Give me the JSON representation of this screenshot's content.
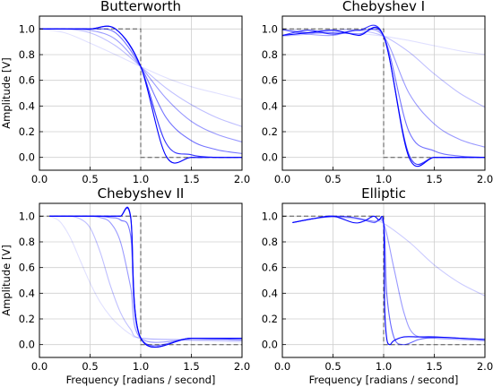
{
  "figure": {
    "xlabel": "Frequency [radians / second]",
    "ylabel": "Amplitude [V]"
  },
  "chart_data": [
    {
      "type": "line",
      "title": "Butterworth",
      "xlim": [
        0,
        2
      ],
      "ylim": [
        -0.1,
        1.1
      ],
      "xticks": [
        "0.0",
        "0.5",
        "1.0",
        "1.5",
        "2.0"
      ],
      "yticks": [
        "0.0",
        "0.2",
        "0.4",
        "0.6",
        "0.8",
        "1.0"
      ],
      "grid": true,
      "ideal": {
        "style": "dashed",
        "x": [
          0,
          1,
          1,
          2
        ],
        "y": [
          1,
          1,
          0,
          0
        ]
      },
      "series": [
        {
          "order": 1,
          "alpha": 0.12,
          "x": [
            0,
            0.25,
            0.5,
            0.75,
            1.0,
            1.25,
            1.5,
            1.75,
            2.0
          ],
          "y": [
            1.0,
            0.97,
            0.89,
            0.8,
            0.707,
            0.62,
            0.55,
            0.5,
            0.45
          ]
        },
        {
          "order": 2,
          "alpha": 0.25,
          "x": [
            0,
            0.25,
            0.5,
            0.75,
            1.0,
            1.25,
            1.5,
            1.75,
            2.0
          ],
          "y": [
            1.0,
            1.0,
            0.97,
            0.87,
            0.707,
            0.54,
            0.41,
            0.31,
            0.24
          ]
        },
        {
          "order": 3,
          "alpha": 0.4,
          "x": [
            0,
            0.25,
            0.5,
            0.75,
            1.0,
            1.25,
            1.5,
            1.75,
            2.0
          ],
          "y": [
            1.0,
            1.0,
            0.99,
            0.92,
            0.707,
            0.46,
            0.28,
            0.18,
            0.12
          ]
        },
        {
          "order": 5,
          "alpha": 0.55,
          "x": [
            0,
            0.25,
            0.5,
            0.75,
            1.0,
            1.25,
            1.5,
            1.75,
            2.0
          ],
          "y": [
            1.0,
            1.0,
            1.0,
            0.97,
            0.707,
            0.31,
            0.13,
            0.06,
            0.03
          ]
        },
        {
          "order": 10,
          "alpha": 0.8,
          "x": [
            0,
            0.25,
            0.5,
            0.75,
            1.0,
            1.25,
            1.5,
            1.75,
            2.0
          ],
          "y": [
            1.0,
            1.0,
            1.0,
            1.0,
            0.707,
            0.11,
            0.02,
            0.0,
            0.0
          ]
        },
        {
          "order": 20,
          "alpha": 1.0,
          "x": [
            0,
            0.25,
            0.5,
            0.75,
            1.0,
            1.25,
            1.5,
            1.75,
            2.0
          ],
          "y": [
            1.0,
            1.0,
            1.0,
            1.0,
            0.707,
            0.01,
            0.0,
            0.0,
            0.0
          ]
        }
      ]
    },
    {
      "type": "line",
      "title": "Chebyshev I",
      "xlim": [
        0,
        2
      ],
      "ylim": [
        -0.1,
        1.1
      ],
      "xticks": [
        "0.0",
        "0.5",
        "1.0",
        "1.5",
        "2.0"
      ],
      "yticks": [
        "0.0",
        "0.2",
        "0.4",
        "0.6",
        "0.8",
        "1.0"
      ],
      "grid": true,
      "ideal": {
        "style": "dashed",
        "x": [
          0,
          1,
          1,
          2
        ],
        "y": [
          1,
          1,
          0,
          0
        ]
      },
      "ripple": 0.944,
      "series": [
        {
          "order": 1,
          "alpha": 0.12,
          "x": [
            0,
            0.25,
            0.5,
            0.75,
            1.0,
            1.25,
            1.5,
            1.75,
            2.0
          ],
          "y": [
            0.994,
            0.99,
            0.98,
            0.965,
            0.944,
            0.91,
            0.87,
            0.83,
            0.8
          ]
        },
        {
          "order": 2,
          "alpha": 0.25,
          "x": [
            0,
            0.25,
            0.5,
            0.75,
            1.0,
            1.25,
            1.5,
            1.75,
            2.0
          ],
          "y": [
            0.944,
            0.96,
            0.99,
            0.99,
            0.944,
            0.82,
            0.65,
            0.5,
            0.39
          ]
        },
        {
          "order": 3,
          "alpha": 0.4,
          "x": [
            0,
            0.25,
            0.5,
            0.75,
            1.0,
            1.25,
            1.5,
            1.75,
            2.0
          ],
          "y": [
            0.994,
            0.96,
            0.95,
            0.99,
            0.944,
            0.5,
            0.26,
            0.14,
            0.08
          ]
        },
        {
          "order": 5,
          "alpha": 0.55,
          "x": [
            0,
            0.25,
            0.5,
            0.75,
            1.0,
            1.25,
            1.5,
            1.75,
            2.0
          ],
          "y": [
            0.994,
            0.97,
            0.97,
            0.96,
            0.944,
            0.2,
            0.05,
            0.01,
            0.0
          ]
        },
        {
          "order": 10,
          "alpha": 0.8,
          "x": [
            0,
            0.25,
            0.5,
            0.75,
            1.0,
            1.25,
            1.5,
            1.75,
            2.0
          ],
          "y": [
            0.95,
            0.99,
            0.96,
            0.99,
            0.944,
            0.02,
            0.0,
            0.0,
            0.0
          ]
        },
        {
          "order": 20,
          "alpha": 1.0,
          "x": [
            0,
            0.25,
            0.5,
            0.75,
            1.0,
            1.25,
            1.5,
            1.75,
            2.0
          ],
          "y": [
            0.95,
            0.97,
            0.99,
            0.95,
            0.944,
            0.0,
            0.0,
            0.0,
            0.0
          ]
        }
      ]
    },
    {
      "type": "line",
      "title": "Chebyshev II",
      "xlim": [
        0,
        2
      ],
      "ylim": [
        -0.1,
        1.1
      ],
      "xticks": [
        "0.0",
        "0.5",
        "1.0",
        "1.5",
        "2.0"
      ],
      "yticks": [
        "0.0",
        "0.2",
        "0.4",
        "0.6",
        "0.8",
        "1.0"
      ],
      "grid": true,
      "ideal": {
        "style": "dashed",
        "x": [
          0,
          1,
          1,
          2
        ],
        "y": [
          1,
          1,
          0,
          0
        ]
      },
      "series": [
        {
          "order": 1,
          "alpha": 0.12,
          "x": [
            0.1,
            0.2,
            0.3,
            0.4,
            0.5,
            0.6,
            0.7,
            0.8,
            0.9,
            1.0,
            1.5,
            2.0
          ],
          "y": [
            1.0,
            0.96,
            0.84,
            0.66,
            0.48,
            0.33,
            0.22,
            0.14,
            0.08,
            0.05,
            0.03,
            0.02
          ]
        },
        {
          "order": 2,
          "alpha": 0.25,
          "x": [
            0.1,
            0.2,
            0.3,
            0.4,
            0.5,
            0.6,
            0.7,
            0.8,
            0.9,
            1.0,
            1.5,
            2.0
          ],
          "y": [
            1.0,
            1.0,
            1.0,
            0.98,
            0.91,
            0.72,
            0.46,
            0.25,
            0.12,
            0.05,
            0.04,
            0.03
          ]
        },
        {
          "order": 3,
          "alpha": 0.4,
          "x": [
            0.1,
            0.2,
            0.3,
            0.4,
            0.5,
            0.6,
            0.7,
            0.8,
            0.9,
            1.0,
            1.5,
            2.0
          ],
          "y": [
            1.0,
            1.0,
            1.0,
            1.0,
            1.0,
            0.99,
            0.95,
            0.8,
            0.45,
            0.05,
            0.04,
            0.04
          ]
        },
        {
          "order": 5,
          "alpha": 0.55,
          "x": [
            0.1,
            0.2,
            0.3,
            0.4,
            0.5,
            0.6,
            0.7,
            0.8,
            0.9,
            1.0,
            1.5,
            2.0
          ],
          "y": [
            1.0,
            1.0,
            1.0,
            1.0,
            1.0,
            1.0,
            0.99,
            0.97,
            0.85,
            0.05,
            0.05,
            0.04
          ]
        },
        {
          "order": 10,
          "alpha": 0.8,
          "x": [
            0.1,
            0.2,
            0.3,
            0.4,
            0.5,
            0.6,
            0.7,
            0.8,
            0.9,
            1.0,
            1.5,
            2.0
          ],
          "y": [
            1.0,
            1.0,
            1.0,
            1.0,
            1.0,
            1.0,
            1.0,
            1.0,
            0.99,
            0.05,
            0.05,
            0.05
          ]
        },
        {
          "order": 20,
          "alpha": 1.0,
          "x": [
            0.1,
            0.2,
            0.3,
            0.4,
            0.5,
            0.6,
            0.7,
            0.8,
            0.9,
            1.0,
            1.5,
            2.0
          ],
          "y": [
            1.0,
            1.0,
            1.0,
            1.0,
            1.0,
            1.0,
            1.0,
            1.0,
            1.0,
            0.05,
            0.05,
            0.05
          ]
        }
      ]
    },
    {
      "type": "line",
      "title": "Elliptic",
      "xlim": [
        0,
        2
      ],
      "ylim": [
        -0.1,
        1.1
      ],
      "xticks": [
        "0.0",
        "0.5",
        "1.0",
        "1.5",
        "2.0"
      ],
      "yticks": [
        "0.0",
        "0.2",
        "0.4",
        "0.6",
        "0.8",
        "1.0"
      ],
      "grid": true,
      "ideal": {
        "style": "dashed",
        "x": [
          0,
          1,
          1,
          2
        ],
        "y": [
          1,
          1,
          0,
          0
        ]
      },
      "series": [
        {
          "order": 1,
          "alpha": 0.2,
          "x": [
            0.1,
            0.3,
            0.5,
            0.7,
            0.9,
            1.0,
            1.25,
            1.5,
            1.75,
            2.0
          ],
          "y": [
            0.95,
            0.98,
            0.995,
            0.98,
            0.96,
            0.944,
            0.8,
            0.62,
            0.48,
            0.38
          ]
        },
        {
          "order": 2,
          "alpha": 0.4,
          "x": [
            0.1,
            0.3,
            0.5,
            0.7,
            0.9,
            1.0,
            1.1,
            1.2,
            1.3,
            1.5,
            1.75,
            2.0
          ],
          "y": [
            0.95,
            0.98,
            0.995,
            0.99,
            0.96,
            0.944,
            0.6,
            0.25,
            0.08,
            0.05,
            0.04,
            0.03
          ]
        },
        {
          "order": 3,
          "alpha": 0.6,
          "x": [
            0.1,
            0.3,
            0.5,
            0.7,
            0.9,
            1.0,
            1.03,
            1.1,
            1.2,
            1.35,
            1.5,
            1.75,
            2.0
          ],
          "y": [
            0.95,
            0.98,
            1.0,
            0.99,
            0.95,
            0.944,
            0.4,
            0.06,
            0.0,
            0.04,
            0.055,
            0.05,
            0.04
          ]
        },
        {
          "order": 5,
          "alpha": 1.0,
          "x": [
            0.1,
            0.3,
            0.5,
            0.7,
            0.8,
            0.9,
            0.95,
            1.0,
            1.01,
            1.03,
            1.06,
            1.1,
            1.2,
            1.35,
            1.5,
            1.75,
            2.0
          ],
          "y": [
            0.95,
            0.98,
            1.0,
            0.95,
            0.96,
            1.0,
            0.97,
            0.944,
            0.3,
            0.05,
            0.0,
            0.03,
            0.06,
            0.06,
            0.06,
            0.05,
            0.04
          ]
        }
      ]
    }
  ]
}
